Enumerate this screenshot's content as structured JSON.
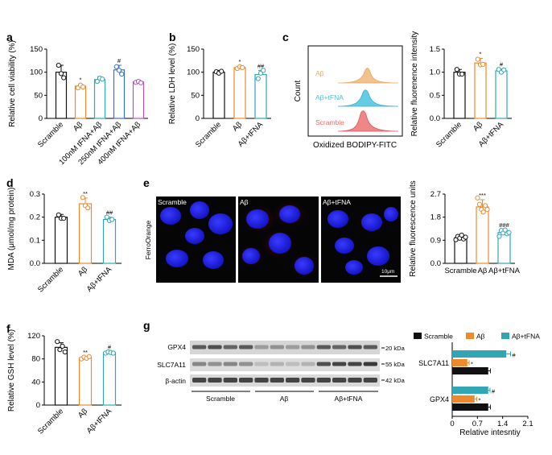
{
  "panel_labels": [
    "a",
    "b",
    "c",
    "d",
    "e",
    "f",
    "g"
  ],
  "colors": {
    "black": "#111111",
    "orange": "#ee8a2c",
    "teal": "#32a6b4",
    "blue": "#3b72c4",
    "purple": "#b553c9",
    "gray": "#888888"
  },
  "flow": {
    "xlabel": "Oxidized BODIPY-FITC",
    "ylabel": "Count",
    "series": [
      {
        "label": "Aβ",
        "color": "#f2c28d"
      },
      {
        "label": "Aβ+tFNA",
        "color": "#62cde4"
      },
      {
        "label": "Scramble",
        "color": "#ef8787"
      }
    ]
  },
  "micro": {
    "tiles": [
      "Scramble",
      "Aβ",
      "Aβ+tFNA"
    ],
    "stain_label": "FerroOrange",
    "scalebar_label": "10μm"
  },
  "chart_data": [
    {
      "id": "a",
      "type": "bar",
      "ylabel": "Relative cell viability (%)",
      "ylim": [
        0,
        150
      ],
      "yticks": [
        0,
        50,
        100,
        150
      ],
      "categories": [
        "Scramble",
        "Aβ",
        "100nM tFNA+Aβ",
        "250nM tFNA+Aβ",
        "400nM tFNA+Aβ"
      ],
      "values": [
        100,
        70,
        84,
        105,
        79
      ],
      "errors": [
        15,
        4,
        6,
        10,
        4
      ],
      "colors": [
        "#111111",
        "#ee8a2c",
        "#32a6b4",
        "#3b72c4",
        "#b553c9"
      ],
      "points": [
        [
          115,
          97,
          88
        ],
        [
          66,
          72,
          68
        ],
        [
          80,
          87,
          85
        ],
        [
          112,
          104,
          96
        ],
        [
          78,
          80,
          77
        ]
      ],
      "annotations": [
        "",
        "*",
        "",
        "#",
        ""
      ]
    },
    {
      "id": "b",
      "type": "bar",
      "ylabel": "Relative LDH level (%)",
      "ylim": [
        0,
        150
      ],
      "yticks": [
        0,
        50,
        100,
        150
      ],
      "categories": [
        "Scramble",
        "Aβ",
        "Aβ+tFNA"
      ],
      "values": [
        100,
        110,
        95
      ],
      "errors": [
        4,
        3,
        9
      ],
      "colors": [
        "#111111",
        "#ee8a2c",
        "#32a6b4"
      ],
      "points": [
        [
          101,
          98,
          102
        ],
        [
          108,
          112,
          110
        ],
        [
          86,
          98,
          104
        ]
      ],
      "annotations": [
        "",
        "*",
        "##"
      ]
    },
    {
      "id": "c",
      "type": "bar",
      "ylabel": "Relative fluorenence intensity",
      "ylim": [
        0,
        1.5
      ],
      "yticks": [
        0.0,
        0.5,
        1.0,
        1.5
      ],
      "categories": [
        "Scramble",
        "Aβ",
        "Aβ+tFNA"
      ],
      "values": [
        1.0,
        1.2,
        1.03
      ],
      "errors": [
        0.06,
        0.1,
        0.04
      ],
      "colors": [
        "#111111",
        "#ee8a2c",
        "#32a6b4"
      ],
      "points": [
        [
          1.06,
          0.96,
          0.96
        ],
        [
          1.28,
          1.16,
          1.17
        ],
        [
          1.06,
          1.0,
          1.05
        ]
      ],
      "annotations": [
        "",
        "*",
        "#"
      ]
    },
    {
      "id": "d",
      "type": "bar",
      "ylabel": "MDA (μmol/mg protein)",
      "ylim": [
        0,
        0.3
      ],
      "yticks": [
        0.0,
        0.1,
        0.2,
        0.3
      ],
      "categories": [
        "Scramble",
        "Aβ",
        "Aβ+tFNA"
      ],
      "values": [
        0.2,
        0.258,
        0.19
      ],
      "errors": [
        0.012,
        0.025,
        0.01
      ],
      "colors": [
        "#111111",
        "#ee8a2c",
        "#32a6b4"
      ],
      "points": [
        [
          0.21,
          0.195,
          0.195
        ],
        [
          0.285,
          0.25,
          0.24
        ],
        [
          0.2,
          0.185,
          0.19
        ]
      ],
      "annotations": [
        "",
        "**",
        "##"
      ]
    },
    {
      "id": "e",
      "type": "bar",
      "ylabel": "Relative fluorescence units",
      "ylim": [
        0,
        2.7
      ],
      "yticks": [
        0.0,
        0.9,
        1.8,
        2.7
      ],
      "categories": [
        "Scramble",
        "Aβ",
        "Aβ+tFNA"
      ],
      "values": [
        1.0,
        2.2,
        1.2
      ],
      "errors": [
        0.1,
        0.28,
        0.12
      ],
      "colors": [
        "#111111",
        "#ee8a2c",
        "#32a6b4"
      ],
      "points": [
        [
          0.92,
          1.05,
          0.98,
          1.1,
          0.95,
          1.02
        ],
        [
          2.55,
          2.3,
          2.1,
          2.0,
          2.25,
          2.1
        ],
        [
          1.05,
          1.28,
          1.18,
          1.3,
          1.15,
          1.2
        ]
      ],
      "annotations": [
        "",
        "***",
        "###"
      ]
    },
    {
      "id": "f",
      "type": "bar",
      "ylabel": "Relative GSH level (%)",
      "ylim": [
        0,
        120
      ],
      "yticks": [
        0,
        40,
        80,
        120
      ],
      "categories": [
        "Scramble",
        "Aβ",
        "Aβ+tFNA"
      ],
      "values": [
        100,
        82,
        91
      ],
      "errors": [
        8,
        2,
        2
      ],
      "colors": [
        "#111111",
        "#ee8a2c",
        "#32a6b4"
      ],
      "points": [
        [
          110,
          96,
          102,
          92
        ],
        [
          80,
          83,
          81,
          84
        ],
        [
          90,
          92,
          91,
          90
        ]
      ],
      "annotations": [
        "",
        "**",
        "#"
      ]
    },
    {
      "id": "g",
      "type": "bar",
      "orientation": "horizontal",
      "xlabel": "Relative intesntiy",
      "xlim": [
        0,
        2.1
      ],
      "xticks": [
        0,
        0.7,
        1.4,
        2.1
      ],
      "categories": [
        "SLC7A11",
        "GPX4"
      ],
      "legend": [
        "Scramble",
        "Aβ",
        "Aβ+tFNA"
      ],
      "series": [
        {
          "name": "Scramble",
          "color": "#111111",
          "values": [
            1.0,
            1.0
          ],
          "errors": [
            0.06,
            0.06
          ],
          "annotations": [
            "",
            ""
          ]
        },
        {
          "name": "Aβ",
          "color": "#ee8a2c",
          "values": [
            0.42,
            0.62
          ],
          "errors": [
            0.05,
            0.06
          ],
          "annotations": [
            "*",
            "*"
          ]
        },
        {
          "name": "Aβ+tFNA",
          "color": "#32a6b4",
          "values": [
            1.5,
            1.0
          ],
          "errors": [
            0.12,
            0.05
          ],
          "annotations": [
            "#",
            "#"
          ]
        }
      ]
    }
  ],
  "blot": {
    "rows": [
      "GPX4",
      "SLC7A11",
      "β-actin"
    ],
    "markers": [
      "20 kDa",
      "55 kDa",
      "42 kDa"
    ],
    "groups": [
      "Scramble",
      "Aβ",
      "Aβ+tFNA"
    ]
  }
}
